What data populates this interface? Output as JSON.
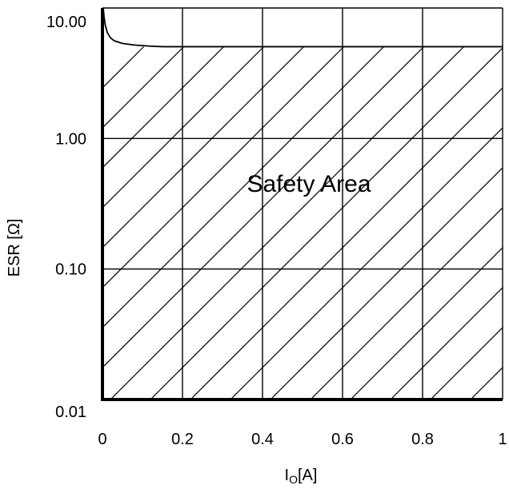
{
  "chart_data": {
    "type": "line",
    "title": "",
    "xlabel_main": "I",
    "xlabel_sub": "O",
    "xlabel_unit": "[A]",
    "ylabel": "ESR [Ω]",
    "x_ticks": [
      "0",
      "0.2",
      "0.4",
      "0.6",
      "0.8",
      "1"
    ],
    "x_tick_values": [
      0,
      0.2,
      0.4,
      0.6,
      0.8,
      1.0
    ],
    "y_ticks": [
      "10.00",
      "1.00",
      "0.10",
      "0.01"
    ],
    "y_tick_values": [
      10,
      1,
      0.1,
      0.01
    ],
    "xlim": [
      0,
      1
    ],
    "ylim": [
      0.01,
      10
    ],
    "y_scale": "log",
    "grid": true,
    "annotation": "Safety Area",
    "series": [
      {
        "x": [
          0.002,
          0.004,
          0.007,
          0.012,
          0.02,
          0.03,
          0.05,
          0.08,
          0.12,
          0.15
        ],
        "y": [
          10,
          8.6,
          7.4,
          6.5,
          5.9,
          5.6,
          5.35,
          5.2,
          5.1,
          5.05
        ]
      }
    ],
    "upper_bound_line": {
      "y": 5.05,
      "x_from": 0.15,
      "x_to": 1.0
    },
    "hatched_region": "below curve and upper bound"
  },
  "colors": {
    "line": "#000000",
    "background": "#ffffff"
  }
}
